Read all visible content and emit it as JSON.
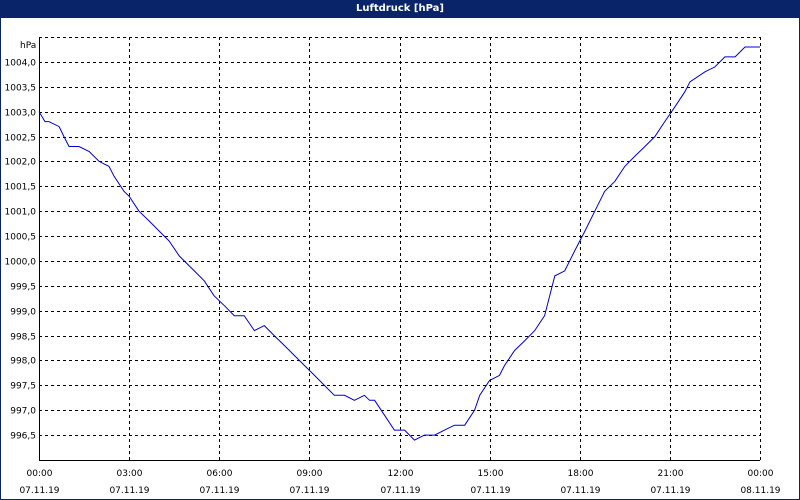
{
  "window": {
    "title": "Luftdruck [hPa]"
  },
  "colors": {
    "titlebar": "#0a246a",
    "line": "#0000cc",
    "grid": "#000000"
  },
  "chart_data": {
    "type": "line",
    "title": "Luftdruck [hPa]",
    "ylabel": "hPa",
    "xlabel": "",
    "grid": true,
    "xlim": [
      0,
      24
    ],
    "ylim": [
      996.0,
      1004.5
    ],
    "y_ticks": [
      {
        "value": 996.5,
        "label": "996,5"
      },
      {
        "value": 997.0,
        "label": "997,0"
      },
      {
        "value": 997.5,
        "label": "997,5"
      },
      {
        "value": 998.0,
        "label": "998,0"
      },
      {
        "value": 998.5,
        "label": "998,5"
      },
      {
        "value": 999.0,
        "label": "999,0"
      },
      {
        "value": 999.5,
        "label": "999,5"
      },
      {
        "value": 1000.0,
        "label": "1000,0"
      },
      {
        "value": 1000.5,
        "label": "1000,5"
      },
      {
        "value": 1001.0,
        "label": "1001,0"
      },
      {
        "value": 1001.5,
        "label": "1001,5"
      },
      {
        "value": 1002.0,
        "label": "1002,0"
      },
      {
        "value": 1002.5,
        "label": "1002,5"
      },
      {
        "value": 1003.0,
        "label": "1003,0"
      },
      {
        "value": 1003.5,
        "label": "1003,5"
      },
      {
        "value": 1004.0,
        "label": "1004,0"
      }
    ],
    "x_ticks": [
      {
        "value": 0,
        "time": "00:00",
        "date": "07.11.19"
      },
      {
        "value": 3,
        "time": "03:00",
        "date": "07.11.19"
      },
      {
        "value": 6,
        "time": "06:00",
        "date": "07.11.19"
      },
      {
        "value": 9,
        "time": "09:00",
        "date": "07.11.19"
      },
      {
        "value": 12,
        "time": "12:00",
        "date": "07.11.19"
      },
      {
        "value": 15,
        "time": "15:00",
        "date": "07.11.19"
      },
      {
        "value": 18,
        "time": "18:00",
        "date": "07.11.19"
      },
      {
        "value": 21,
        "time": "21:00",
        "date": "07.11.19"
      },
      {
        "value": 24,
        "time": "00:00",
        "date": "08.11.19"
      }
    ],
    "series": [
      {
        "x": [
          0,
          0.2,
          0.33,
          0.67,
          0.83,
          1.0,
          1.33,
          1.67,
          2.0,
          2.33,
          2.5,
          2.83,
          3.0,
          3.33,
          3.67,
          4.0,
          4.33,
          4.67,
          5.0,
          5.17,
          5.5,
          5.83,
          6.17,
          6.5,
          6.83,
          7.17,
          7.5,
          7.83,
          8.17,
          8.5,
          8.83,
          9.17,
          9.5,
          9.83,
          10.17,
          10.5,
          10.83,
          11.0,
          11.17,
          11.5,
          11.83,
          12.17,
          12.5,
          12.83,
          13.17,
          13.5,
          13.83,
          14.17,
          14.5,
          14.67,
          15.0,
          15.33,
          15.5,
          15.83,
          16.17,
          16.5,
          16.83,
          17.17,
          17.5,
          17.83,
          18.17,
          18.5,
          18.83,
          19.17,
          19.5,
          19.83,
          20.17,
          20.5,
          20.83,
          21.17,
          21.5,
          21.67,
          22.17,
          22.5,
          22.83,
          23.17,
          23.5,
          23.67,
          24.0
        ],
        "y": [
          1003.0,
          1002.8,
          1002.8,
          1002.7,
          1002.5,
          1002.3,
          1002.3,
          1002.2,
          1002.0,
          1001.9,
          1001.7,
          1001.4,
          1001.3,
          1001.0,
          1000.8,
          1000.6,
          1000.4,
          1000.1,
          999.9,
          999.8,
          999.6,
          999.3,
          999.1,
          998.9,
          998.9,
          998.6,
          998.7,
          998.5,
          998.3,
          998.1,
          997.9,
          997.7,
          997.5,
          997.3,
          997.3,
          997.2,
          997.3,
          997.2,
          997.2,
          996.9,
          996.6,
          996.6,
          996.4,
          996.5,
          996.5,
          996.6,
          996.7,
          996.7,
          997.0,
          997.3,
          997.6,
          997.7,
          997.9,
          998.2,
          998.4,
          998.6,
          998.9,
          999.7,
          999.8,
          1000.2,
          1000.6,
          1001.0,
          1001.4,
          1001.6,
          1001.9,
          1002.1,
          1002.3,
          1002.5,
          1002.8,
          1003.1,
          1003.4,
          1003.6,
          1003.8,
          1003.9,
          1004.1,
          1004.1,
          1004.3,
          1004.3,
          1004.3
        ]
      }
    ]
  }
}
